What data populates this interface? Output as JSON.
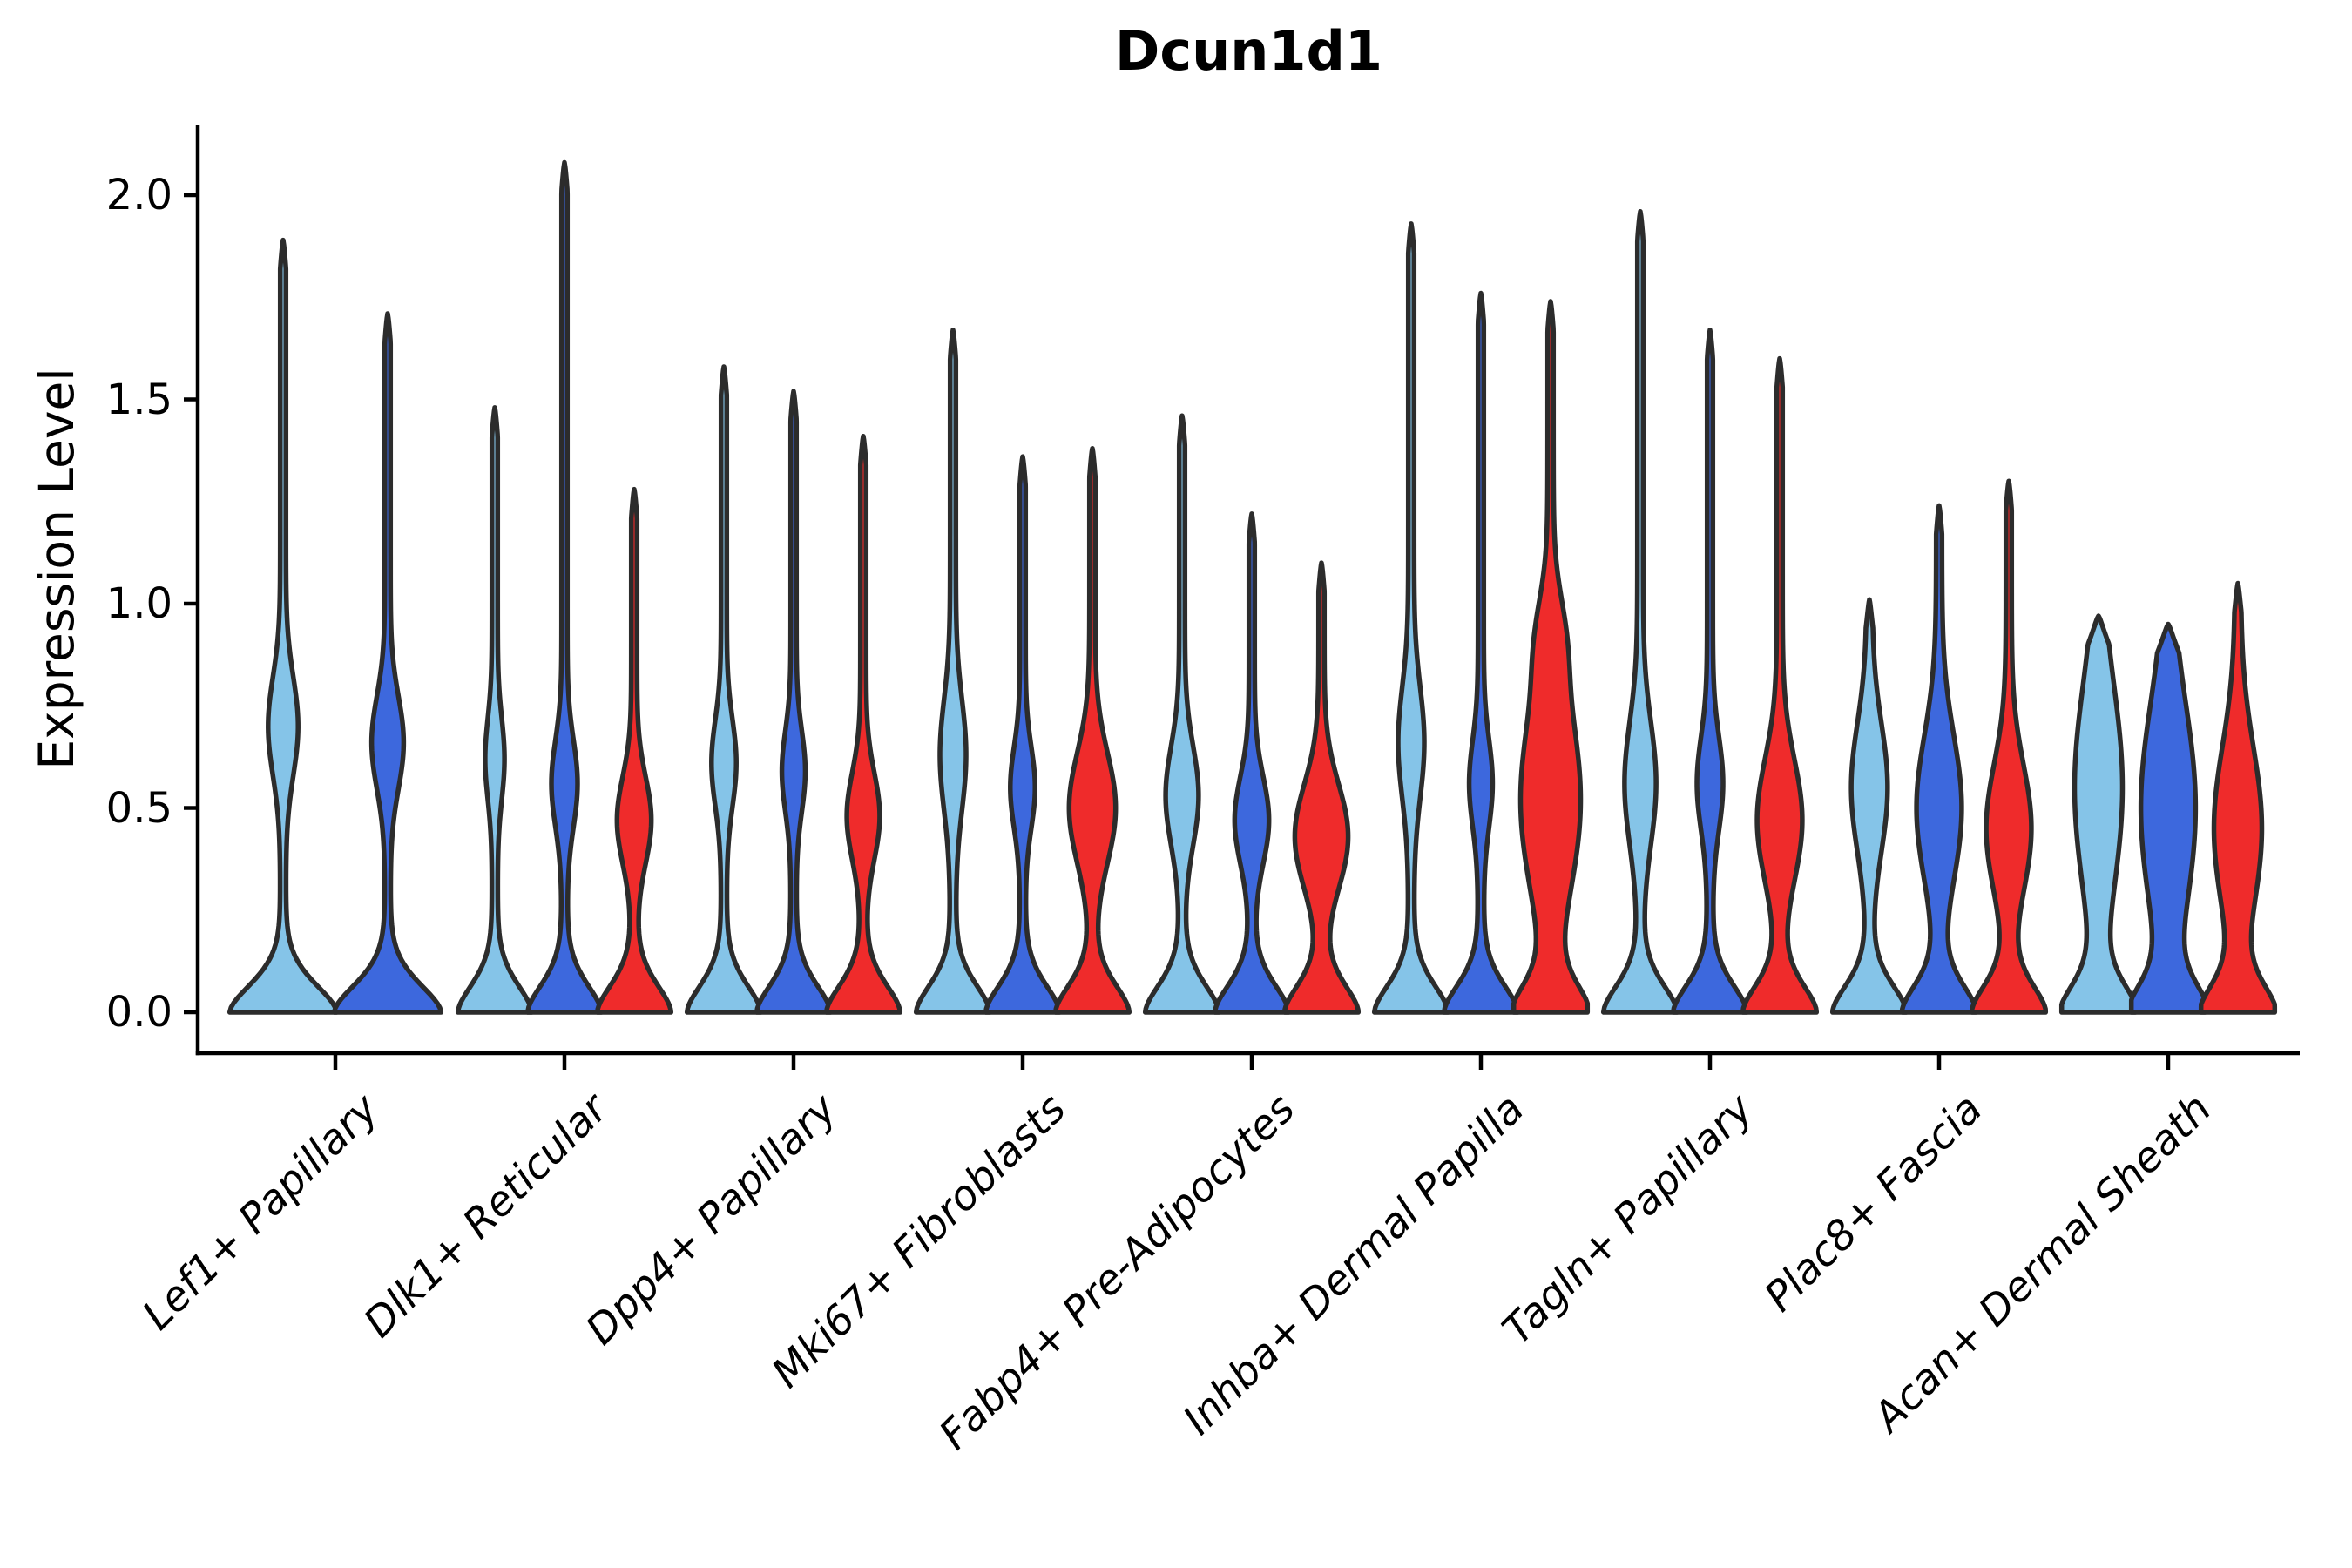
{
  "title": "Dcun1d1",
  "ylabel": "Expression Level",
  "ytick_labels": [
    "0.0",
    "0.5",
    "1.0",
    "1.5",
    "2.0"
  ],
  "colors": {
    "light_blue": "#85C4E8",
    "dark_blue": "#3D68DD",
    "red": "#EF2B2B",
    "violin_edge": "#2C2C2C",
    "axis": "#000000",
    "background": "#FFFFFF"
  },
  "chart_data": {
    "type": "violin",
    "title": "Dcun1d1",
    "xlabel": "",
    "ylabel": "Expression Level",
    "ylim": [
      0,
      2.17
    ],
    "yticks": [
      0.0,
      0.5,
      1.0,
      1.5,
      2.0
    ],
    "grid": false,
    "legend": null,
    "series_colors": {
      "light_blue": "#85C4E8",
      "dark_blue": "#3D68DD",
      "red": "#EF2B2B"
    },
    "categories": [
      "Lef1+ Papillary",
      "Dlk1+ Reticular",
      "Dpp4+ Papillary",
      "Mki67+ Fibroblasts",
      "Fabp4+ Pre-Adipocytes",
      "Inhba+ Dermal Papilla",
      "Tagln+ Papillary",
      "Plac8+ Fascia",
      "Acan+ Dermal Sheath"
    ],
    "groups": [
      {
        "category": "Lef1+ Papillary",
        "violins": [
          {
            "color_key": "light_blue",
            "max": 1.89,
            "bulges": [
              {
                "c": 0.7,
                "s": 0.17,
                "a": 0.24
              }
            ]
          },
          {
            "color_key": "dark_blue",
            "max": 1.71,
            "bulges": [
              {
                "c": 0.66,
                "s": 0.16,
                "a": 0.26
              }
            ]
          }
        ]
      },
      {
        "category": "Dlk1+ Reticular",
        "violins": [
          {
            "color_key": "light_blue",
            "max": 1.48,
            "bulges": [
              {
                "c": 0.62,
                "s": 0.14,
                "a": 0.2
              }
            ]
          },
          {
            "color_key": "dark_blue",
            "max": 2.08,
            "bulges": [
              {
                "c": 0.56,
                "s": 0.15,
                "a": 0.3
              }
            ]
          },
          {
            "color_key": "red",
            "max": 1.28,
            "bulges": [
              {
                "c": 0.47,
                "s": 0.15,
                "a": 0.42
              }
            ]
          }
        ]
      },
      {
        "category": "Dpp4+ Papillary",
        "violins": [
          {
            "color_key": "light_blue",
            "max": 1.58,
            "bulges": [
              {
                "c": 0.61,
                "s": 0.15,
                "a": 0.28
              }
            ]
          },
          {
            "color_key": "dark_blue",
            "max": 1.52,
            "bulges": [
              {
                "c": 0.59,
                "s": 0.14,
                "a": 0.26
              }
            ]
          },
          {
            "color_key": "red",
            "max": 1.41,
            "bulges": [
              {
                "c": 0.48,
                "s": 0.15,
                "a": 0.4
              }
            ]
          }
        ]
      },
      {
        "category": "Mki67+ Fibroblasts",
        "violins": [
          {
            "color_key": "light_blue",
            "max": 1.67,
            "bulges": [
              {
                "c": 0.63,
                "s": 0.19,
                "a": 0.3
              }
            ]
          },
          {
            "color_key": "dark_blue",
            "max": 1.36,
            "bulges": [
              {
                "c": 0.55,
                "s": 0.14,
                "a": 0.28
              }
            ]
          },
          {
            "color_key": "red",
            "max": 1.38,
            "bulges": [
              {
                "c": 0.5,
                "s": 0.19,
                "a": 0.6
              }
            ]
          }
        ]
      },
      {
        "category": "Fabp4+ Pre-Adipocytes",
        "violins": [
          {
            "color_key": "light_blue",
            "max": 1.46,
            "bulges": [
              {
                "c": 0.53,
                "s": 0.17,
                "a": 0.4
              }
            ]
          },
          {
            "color_key": "dark_blue",
            "max": 1.22,
            "bulges": [
              {
                "c": 0.47,
                "s": 0.15,
                "a": 0.42
              }
            ]
          },
          {
            "color_key": "red",
            "max": 1.1,
            "bulges": [
              {
                "c": 0.43,
                "s": 0.18,
                "a": 0.7
              }
            ]
          }
        ]
      },
      {
        "category": "Inhba+ Dermal Papilla",
        "violins": [
          {
            "color_key": "light_blue",
            "max": 1.93,
            "bulges": [
              {
                "c": 0.66,
                "s": 0.19,
                "a": 0.3
              }
            ]
          },
          {
            "color_key": "dark_blue",
            "max": 1.76,
            "bulges": [
              {
                "c": 0.56,
                "s": 0.15,
                "a": 0.26
              }
            ]
          },
          {
            "color_key": "red",
            "max": 1.74,
            "bulges": [
              {
                "c": 0.52,
                "s": 0.33,
                "a": 0.8
              },
              {
                "c": 0.92,
                "s": 0.15,
                "a": 0.22
              }
            ]
          }
        ]
      },
      {
        "category": "Tagln+ Papillary",
        "violins": [
          {
            "color_key": "light_blue",
            "max": 1.96,
            "bulges": [
              {
                "c": 0.56,
                "s": 0.21,
                "a": 0.38
              }
            ]
          },
          {
            "color_key": "dark_blue",
            "max": 1.67,
            "bulges": [
              {
                "c": 0.56,
                "s": 0.16,
                "a": 0.3
              }
            ]
          },
          {
            "color_key": "red",
            "max": 1.6,
            "bulges": [
              {
                "c": 0.47,
                "s": 0.21,
                "a": 0.58
              }
            ]
          }
        ]
      },
      {
        "category": "Plac8+ Fascia",
        "violins": [
          {
            "color_key": "light_blue",
            "max": 1.01,
            "bulges": [
              {
                "c": 0.55,
                "s": 0.22,
                "a": 0.45
              }
            ]
          },
          {
            "color_key": "dark_blue",
            "max": 1.24,
            "bulges": [
              {
                "c": 0.5,
                "s": 0.25,
                "a": 0.58
              }
            ]
          },
          {
            "color_key": "red",
            "max": 1.3,
            "bulges": [
              {
                "c": 0.45,
                "s": 0.22,
                "a": 0.58
              }
            ]
          }
        ]
      },
      {
        "category": "Acan+ Dermal Sheath",
        "violins": [
          {
            "color_key": "light_blue",
            "max": 0.97,
            "bulges": [
              {
                "c": 0.55,
                "s": 0.35,
                "a": 0.62
              }
            ]
          },
          {
            "color_key": "dark_blue",
            "max": 0.95,
            "bulges": [
              {
                "c": 0.5,
                "s": 0.36,
                "a": 0.72
              }
            ]
          },
          {
            "color_key": "red",
            "max": 1.05,
            "bulges": [
              {
                "c": 0.45,
                "s": 0.28,
                "a": 0.62
              }
            ]
          }
        ]
      }
    ]
  }
}
